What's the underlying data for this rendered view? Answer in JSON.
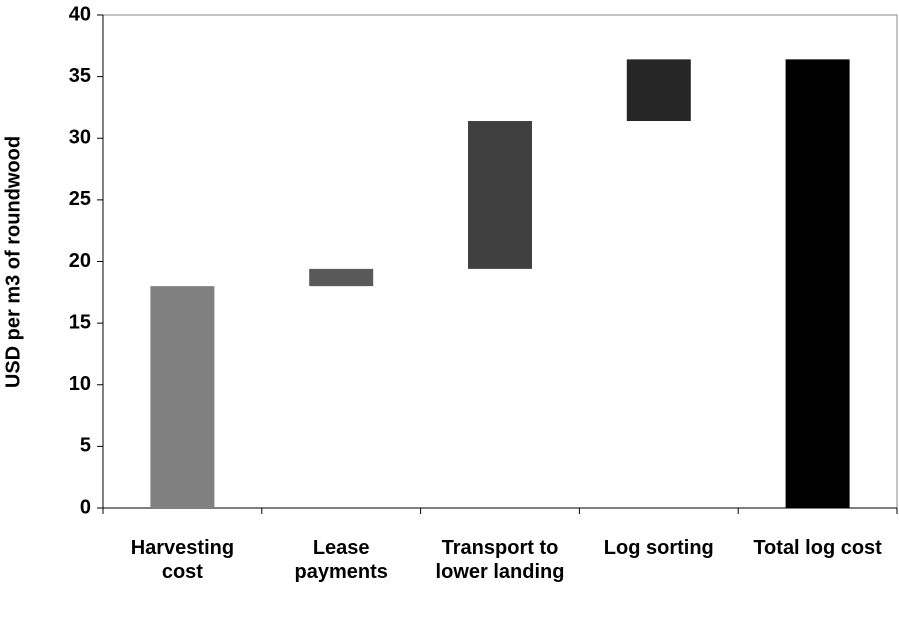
{
  "chart_data": {
    "type": "waterfall",
    "y_label": "USD per m3 of roundwood",
    "categories": [
      "Harvesting cost",
      "Lease payments",
      "Transport to lower landing",
      "Log sorting",
      "Total log cost"
    ],
    "values": [
      18.0,
      1.4,
      12.0,
      5.0,
      36.4
    ],
    "colors": [
      "#808080",
      "#595959",
      "#404040",
      "#262626",
      "#000000"
    ],
    "is_total": [
      false,
      false,
      false,
      false,
      true
    ],
    "ylim": [
      0,
      40
    ],
    "yticks": [
      0,
      5,
      10,
      15,
      20,
      25,
      30,
      35,
      40
    ],
    "grid": false
  }
}
